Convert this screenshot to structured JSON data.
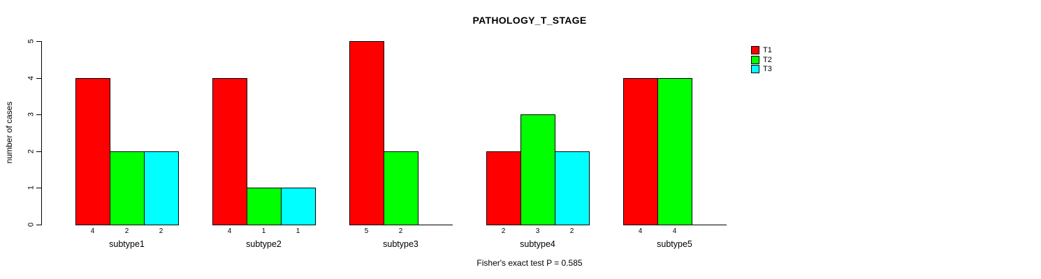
{
  "chart_data": {
    "type": "bar",
    "title": "PATHOLOGY_T_STAGE",
    "ylabel": "number of cases",
    "xlabel": "",
    "footer": "Fisher's exact test P = 0.585",
    "categories": [
      "subtype1",
      "subtype2",
      "subtype3",
      "subtype4",
      "subtype5"
    ],
    "series": [
      {
        "name": "T1",
        "color": "#FF0000",
        "values": [
          4,
          4,
          5,
          2,
          4
        ]
      },
      {
        "name": "T2",
        "color": "#00FF00",
        "values": [
          2,
          1,
          2,
          3,
          4
        ]
      },
      {
        "name": "T3",
        "color": "#00FFFF",
        "values": [
          2,
          1,
          0,
          2,
          0
        ]
      }
    ],
    "x_count_labels": [
      [
        "4",
        "2",
        "2"
      ],
      [
        "4",
        "1",
        "1"
      ],
      [
        "5",
        "2",
        ""
      ],
      [
        "2",
        "3",
        "2"
      ],
      [
        "4",
        "4",
        ""
      ]
    ],
    "ylim": [
      0,
      5
    ],
    "yticks": [
      "0",
      "1",
      "2",
      "3",
      "4",
      "5"
    ],
    "legend_position": "top-right",
    "grid": false,
    "bar_border_color": "#000000",
    "background_color": "#FFFFFF",
    "text_color": "#000000"
  }
}
